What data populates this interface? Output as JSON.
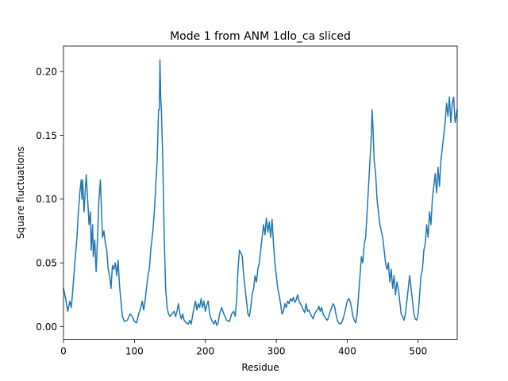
{
  "chart_data": {
    "type": "line",
    "title": "Mode 1 from ANM 1dlo_ca sliced",
    "xlabel": "Residue",
    "ylabel": "Square fluctuations",
    "xlim": [
      0,
      555
    ],
    "ylim": [
      -0.01,
      0.22
    ],
    "grid": false,
    "legend": "none",
    "color": "#1f77b4",
    "xticks": [
      0,
      100,
      200,
      300,
      400,
      500
    ],
    "xtick_labels": [
      "0",
      "100",
      "200",
      "300",
      "400",
      "500"
    ],
    "yticks": [
      0.0,
      0.05,
      0.1,
      0.15,
      0.2
    ],
    "ytick_labels": [
      "0.00",
      "0.05",
      "0.10",
      "0.15",
      "0.20"
    ],
    "series": [
      {
        "points": [
          [
            0,
            0.03
          ],
          [
            3,
            0.022
          ],
          [
            6,
            0.012
          ],
          [
            9,
            0.02
          ],
          [
            11,
            0.015
          ],
          [
            13,
            0.028
          ],
          [
            16,
            0.05
          ],
          [
            19,
            0.07
          ],
          [
            21,
            0.09
          ],
          [
            23,
            0.105
          ],
          [
            25,
            0.115
          ],
          [
            26,
            0.1
          ],
          [
            27,
            0.115
          ],
          [
            29,
            0.09
          ],
          [
            31,
            0.11
          ],
          [
            32,
            0.119
          ],
          [
            34,
            0.1
          ],
          [
            36,
            0.08
          ],
          [
            38,
            0.09
          ],
          [
            39,
            0.06
          ],
          [
            41,
            0.08
          ],
          [
            42,
            0.055
          ],
          [
            44,
            0.068
          ],
          [
            46,
            0.043
          ],
          [
            48,
            0.07
          ],
          [
            50,
            0.1
          ],
          [
            52,
            0.115
          ],
          [
            53,
            0.1
          ],
          [
            55,
            0.07
          ],
          [
            57,
            0.075
          ],
          [
            59,
            0.065
          ],
          [
            61,
            0.06
          ],
          [
            63,
            0.045
          ],
          [
            65,
            0.04
          ],
          [
            67,
            0.03
          ],
          [
            69,
            0.048
          ],
          [
            71,
            0.045
          ],
          [
            73,
            0.05
          ],
          [
            75,
            0.04
          ],
          [
            77,
            0.052
          ],
          [
            79,
            0.032
          ],
          [
            81,
            0.02
          ],
          [
            83,
            0.008
          ],
          [
            86,
            0.004
          ],
          [
            90,
            0.005
          ],
          [
            94,
            0.01
          ],
          [
            97,
            0.008
          ],
          [
            100,
            0.004
          ],
          [
            103,
            0.003
          ],
          [
            106,
            0.01
          ],
          [
            109,
            0.015
          ],
          [
            111,
            0.02
          ],
          [
            113,
            0.013
          ],
          [
            115,
            0.02
          ],
          [
            117,
            0.03
          ],
          [
            119,
            0.04
          ],
          [
            121,
            0.045
          ],
          [
            123,
            0.06
          ],
          [
            126,
            0.075
          ],
          [
            128,
            0.09
          ],
          [
            130,
            0.11
          ],
          [
            132,
            0.13
          ],
          [
            134,
            0.17
          ],
          [
            135,
            0.17
          ],
          [
            136,
            0.209
          ],
          [
            137,
            0.18
          ],
          [
            138,
            0.17
          ],
          [
            140,
            0.13
          ],
          [
            142,
            0.07
          ],
          [
            144,
            0.03
          ],
          [
            146,
            0.015
          ],
          [
            148,
            0.01
          ],
          [
            150,
            0.008
          ],
          [
            153,
            0.01
          ],
          [
            156,
            0.012
          ],
          [
            158,
            0.008
          ],
          [
            160,
            0.012
          ],
          [
            162,
            0.018
          ],
          [
            164,
            0.01
          ],
          [
            166,
            0.006
          ],
          [
            168,
            0.01
          ],
          [
            170,
            0.005
          ],
          [
            173,
            0.003
          ],
          [
            176,
            0.002
          ],
          [
            178,
            0.005
          ],
          [
            180,
            0.002
          ],
          [
            183,
            0.012
          ],
          [
            186,
            0.02
          ],
          [
            188,
            0.013
          ],
          [
            190,
            0.018
          ],
          [
            192,
            0.015
          ],
          [
            194,
            0.022
          ],
          [
            196,
            0.015
          ],
          [
            198,
            0.02
          ],
          [
            200,
            0.012
          ],
          [
            202,
            0.017
          ],
          [
            204,
            0.02
          ],
          [
            206,
            0.01
          ],
          [
            208,
            0.006
          ],
          [
            210,
            0.004
          ],
          [
            212,
            0.002
          ],
          [
            214,
            0.005
          ],
          [
            216,
            0.001
          ],
          [
            218,
            0.003
          ],
          [
            220,
            0.01
          ],
          [
            223,
            0.015
          ],
          [
            226,
            0.01
          ],
          [
            230,
            0.005
          ],
          [
            234,
            0.004
          ],
          [
            237,
            0.01
          ],
          [
            240,
            0.012
          ],
          [
            242,
            0.008
          ],
          [
            244,
            0.02
          ],
          [
            246,
            0.045
          ],
          [
            248,
            0.06
          ],
          [
            250,
            0.058
          ],
          [
            252,
            0.055
          ],
          [
            254,
            0.04
          ],
          [
            256,
            0.03
          ],
          [
            258,
            0.02
          ],
          [
            260,
            0.01
          ],
          [
            262,
            0.008
          ],
          [
            264,
            0.015
          ],
          [
            266,
            0.025
          ],
          [
            268,
            0.03
          ],
          [
            270,
            0.04
          ],
          [
            272,
            0.035
          ],
          [
            274,
            0.045
          ],
          [
            276,
            0.05
          ],
          [
            278,
            0.06
          ],
          [
            280,
            0.07
          ],
          [
            282,
            0.08
          ],
          [
            284,
            0.072
          ],
          [
            286,
            0.085
          ],
          [
            288,
            0.074
          ],
          [
            290,
            0.082
          ],
          [
            292,
            0.07
          ],
          [
            294,
            0.084
          ],
          [
            296,
            0.065
          ],
          [
            298,
            0.05
          ],
          [
            300,
            0.04
          ],
          [
            302,
            0.03
          ],
          [
            304,
            0.025
          ],
          [
            306,
            0.018
          ],
          [
            308,
            0.01
          ],
          [
            310,
            0.012
          ],
          [
            312,
            0.018
          ],
          [
            314,
            0.015
          ],
          [
            316,
            0.02
          ],
          [
            318,
            0.018
          ],
          [
            320,
            0.022
          ],
          [
            322,
            0.02
          ],
          [
            324,
            0.023
          ],
          [
            326,
            0.019
          ],
          [
            328,
            0.021
          ],
          [
            330,
            0.025
          ],
          [
            332,
            0.02
          ],
          [
            334,
            0.018
          ],
          [
            336,
            0.016
          ],
          [
            338,
            0.013
          ],
          [
            340,
            0.011
          ],
          [
            342,
            0.018
          ],
          [
            344,
            0.012
          ],
          [
            346,
            0.013
          ],
          [
            348,
            0.01
          ],
          [
            350,
            0.008
          ],
          [
            352,
            0.006
          ],
          [
            354,
            0.01
          ],
          [
            356,
            0.012
          ],
          [
            358,
            0.013
          ],
          [
            360,
            0.016
          ],
          [
            362,
            0.012
          ],
          [
            364,
            0.015
          ],
          [
            366,
            0.01
          ],
          [
            368,
            0.008
          ],
          [
            370,
            0.006
          ],
          [
            372,
            0.005
          ],
          [
            374,
            0.008
          ],
          [
            376,
            0.012
          ],
          [
            378,
            0.015
          ],
          [
            380,
            0.018
          ],
          [
            382,
            0.016
          ],
          [
            384,
            0.01
          ],
          [
            386,
            0.005
          ],
          [
            388,
            0.003
          ],
          [
            390,
            0.002
          ],
          [
            392,
            0.003
          ],
          [
            394,
            0.006
          ],
          [
            396,
            0.01
          ],
          [
            398,
            0.015
          ],
          [
            400,
            0.02
          ],
          [
            402,
            0.022
          ],
          [
            404,
            0.02
          ],
          [
            406,
            0.015
          ],
          [
            408,
            0.008
          ],
          [
            410,
            0.005
          ],
          [
            412,
            0.003
          ],
          [
            414,
            0.01
          ],
          [
            416,
            0.025
          ],
          [
            418,
            0.04
          ],
          [
            420,
            0.055
          ],
          [
            422,
            0.05
          ],
          [
            424,
            0.065
          ],
          [
            426,
            0.07
          ],
          [
            428,
            0.09
          ],
          [
            430,
            0.11
          ],
          [
            432,
            0.13
          ],
          [
            434,
            0.15
          ],
          [
            435,
            0.17
          ],
          [
            436,
            0.16
          ],
          [
            438,
            0.13
          ],
          [
            440,
            0.12
          ],
          [
            442,
            0.1
          ],
          [
            444,
            0.09
          ],
          [
            446,
            0.08
          ],
          [
            448,
            0.075
          ],
          [
            450,
            0.07
          ],
          [
            452,
            0.06
          ],
          [
            454,
            0.05
          ],
          [
            456,
            0.045
          ],
          [
            458,
            0.05
          ],
          [
            460,
            0.035
          ],
          [
            462,
            0.045
          ],
          [
            464,
            0.03
          ],
          [
            466,
            0.04
          ],
          [
            468,
            0.025
          ],
          [
            470,
            0.035
          ],
          [
            472,
            0.03
          ],
          [
            474,
            0.02
          ],
          [
            476,
            0.01
          ],
          [
            478,
            0.008
          ],
          [
            480,
            0.005
          ],
          [
            482,
            0.01
          ],
          [
            484,
            0.02
          ],
          [
            486,
            0.03
          ],
          [
            488,
            0.04
          ],
          [
            490,
            0.03
          ],
          [
            492,
            0.02
          ],
          [
            494,
            0.01
          ],
          [
            496,
            0.006
          ],
          [
            498,
            0.005
          ],
          [
            500,
            0.01
          ],
          [
            502,
            0.025
          ],
          [
            504,
            0.04
          ],
          [
            506,
            0.045
          ],
          [
            508,
            0.06
          ],
          [
            510,
            0.065
          ],
          [
            512,
            0.08
          ],
          [
            514,
            0.07
          ],
          [
            516,
            0.09
          ],
          [
            518,
            0.08
          ],
          [
            520,
            0.1
          ],
          [
            522,
            0.11
          ],
          [
            524,
            0.12
          ],
          [
            526,
            0.105
          ],
          [
            528,
            0.125
          ],
          [
            530,
            0.11
          ],
          [
            532,
            0.13
          ],
          [
            534,
            0.14
          ],
          [
            536,
            0.15
          ],
          [
            538,
            0.16
          ],
          [
            540,
            0.175
          ],
          [
            542,
            0.165
          ],
          [
            544,
            0.18
          ],
          [
            546,
            0.16
          ],
          [
            548,
            0.175
          ],
          [
            550,
            0.18
          ],
          [
            552,
            0.16
          ],
          [
            555,
            0.17
          ]
        ]
      }
    ]
  }
}
